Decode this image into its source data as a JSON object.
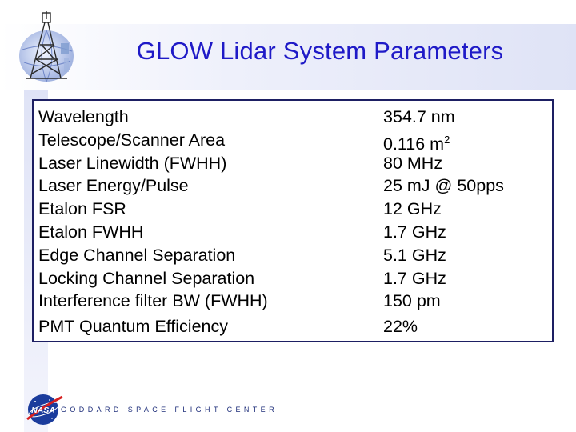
{
  "header": {
    "title": "GLOW Lidar System Parameters"
  },
  "parameters": [
    {
      "name": "Wavelength",
      "value": "354.7 nm"
    },
    {
      "name": "Telescope/Scanner Area",
      "value": "0.116 m",
      "value_sup": "2"
    },
    {
      "name": "Laser Linewidth (FWHH)",
      "value": "80 MHz"
    },
    {
      "name": "Laser Energy/Pulse",
      "value": "25 mJ @ 50pps"
    },
    {
      "name": "Etalon FSR",
      "value": "12 GHz"
    },
    {
      "name": "Etalon FWHH",
      "value": "1.7 GHz"
    },
    {
      "name": "Edge Channel Separation",
      "value": "5.1 GHz"
    },
    {
      "name": "Locking Channel Separation",
      "value": "1.7 GHz"
    },
    {
      "name": "Interference filter BW (FWHH)",
      "value": "150 pm"
    },
    {
      "name": "PMT Quantum Efficiency",
      "value": "22%"
    }
  ],
  "footer": {
    "org_text": "GODDARD SPACE FLIGHT CENTER",
    "logo_text": "NASA"
  },
  "colors": {
    "title": "#1f1ac7",
    "box_border": "#1d1f63",
    "band": "#dfe3f6"
  },
  "icons": {
    "top_logo": "lidar-tower-globe-icon",
    "bottom_logo": "nasa-meatball-icon"
  }
}
